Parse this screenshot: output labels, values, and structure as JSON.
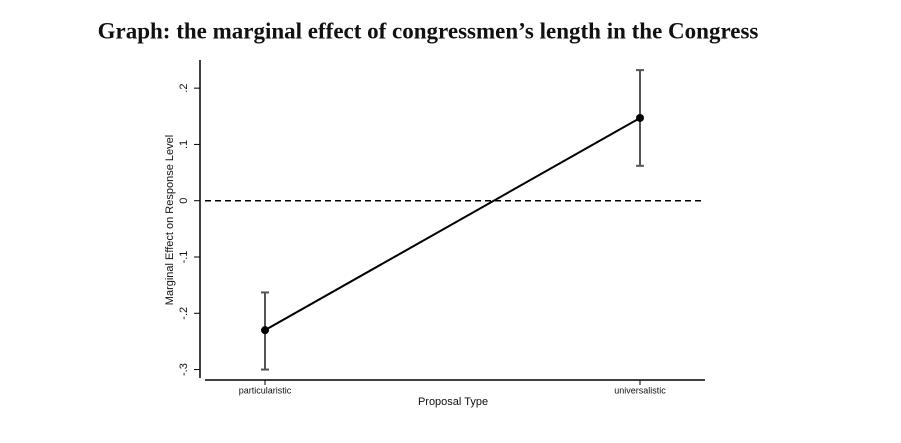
{
  "chart_data": {
    "type": "line",
    "title": "Graph: the marginal effect of congressmen’s length in the Congress",
    "x_label": "Proposal Type",
    "y_label": "Marginal Effect on Response Level",
    "categories": [
      "particularistic",
      "universalistic"
    ],
    "values": [
      -0.23,
      0.147
    ],
    "lower": [
      -0.3,
      0.062
    ],
    "upper": [
      -0.163,
      0.232
    ],
    "color": "#000000",
    "error_color": "#555555",
    "reference_line": 0,
    "ylim": [
      -0.315,
      0.25
    ],
    "yticks": [
      {
        "value": -0.3,
        "label": "-.3"
      },
      {
        "value": -0.2,
        "label": "-.2"
      },
      {
        "value": -0.1,
        "label": "-.1"
      },
      0,
      {
        "value": 0.1,
        "label": ".1"
      },
      {
        "value": 0.2,
        "label": ".2"
      }
    ]
  }
}
